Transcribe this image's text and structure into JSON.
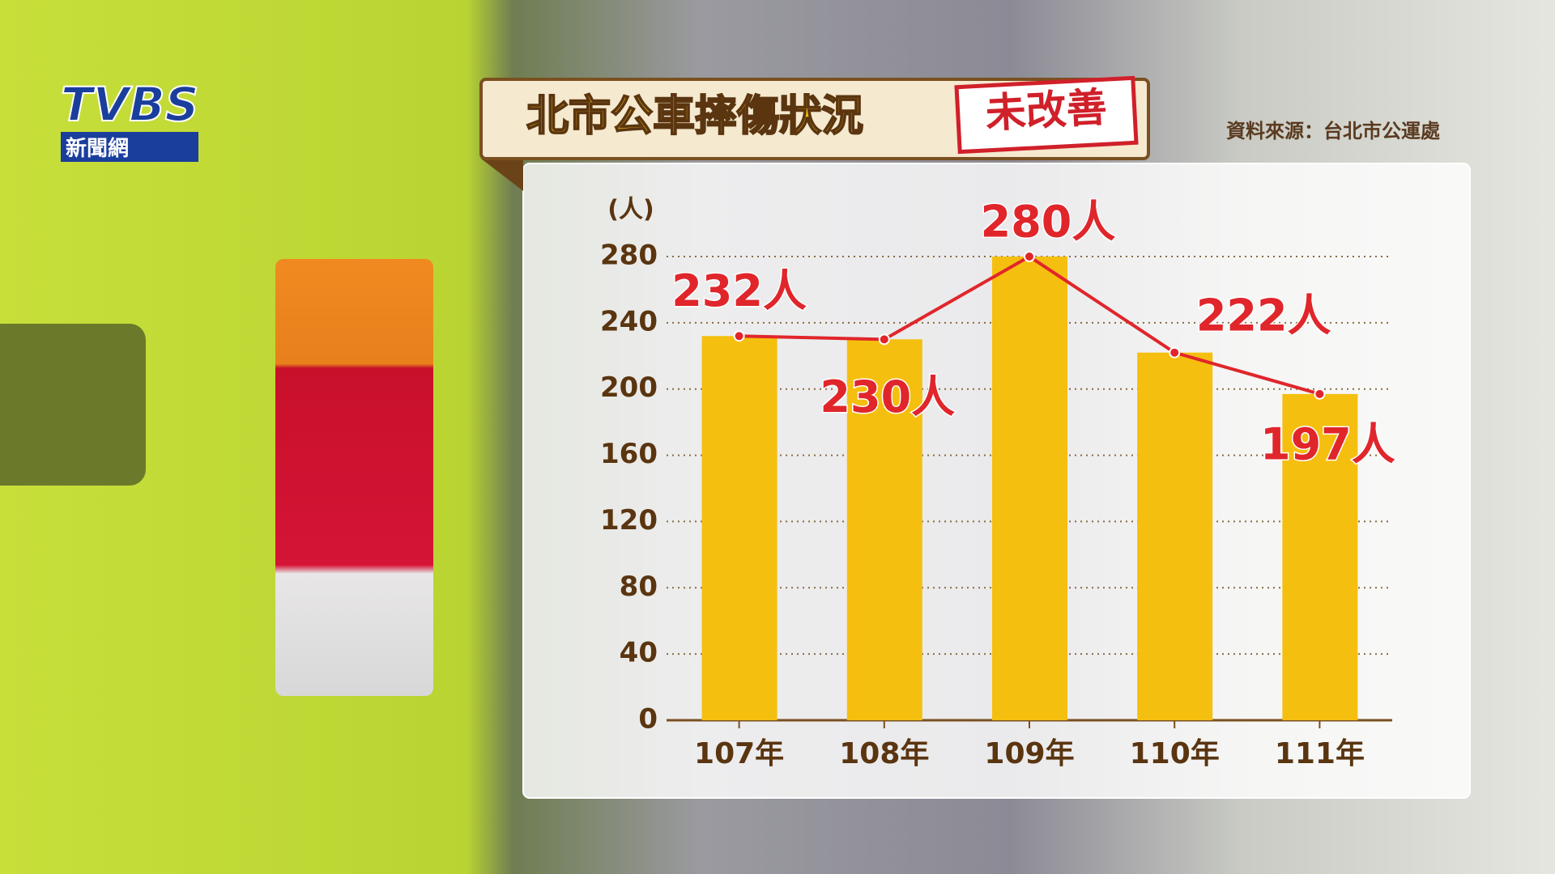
{
  "logo": {
    "name": "TVBS",
    "subtitle": "新聞網"
  },
  "chart_data": {
    "type": "bar",
    "title": "北市公車摔傷狀況",
    "badge": "未改善",
    "source": "資料來源：台北市公運處",
    "y_label": "(人)",
    "categories": [
      "107年",
      "108年",
      "109年",
      "110年",
      "111年"
    ],
    "values": [
      232,
      230,
      280,
      222,
      197
    ],
    "value_labels": [
      "232人",
      "230人",
      "280人",
      "222人",
      "197人"
    ],
    "color": "#f5bf0f",
    "line_color": "#e0262b",
    "label_color": "#e0262b",
    "ylim": [
      0,
      280
    ],
    "yticks": [
      0,
      40,
      80,
      120,
      160,
      200,
      240,
      280
    ],
    "grid": true
  }
}
